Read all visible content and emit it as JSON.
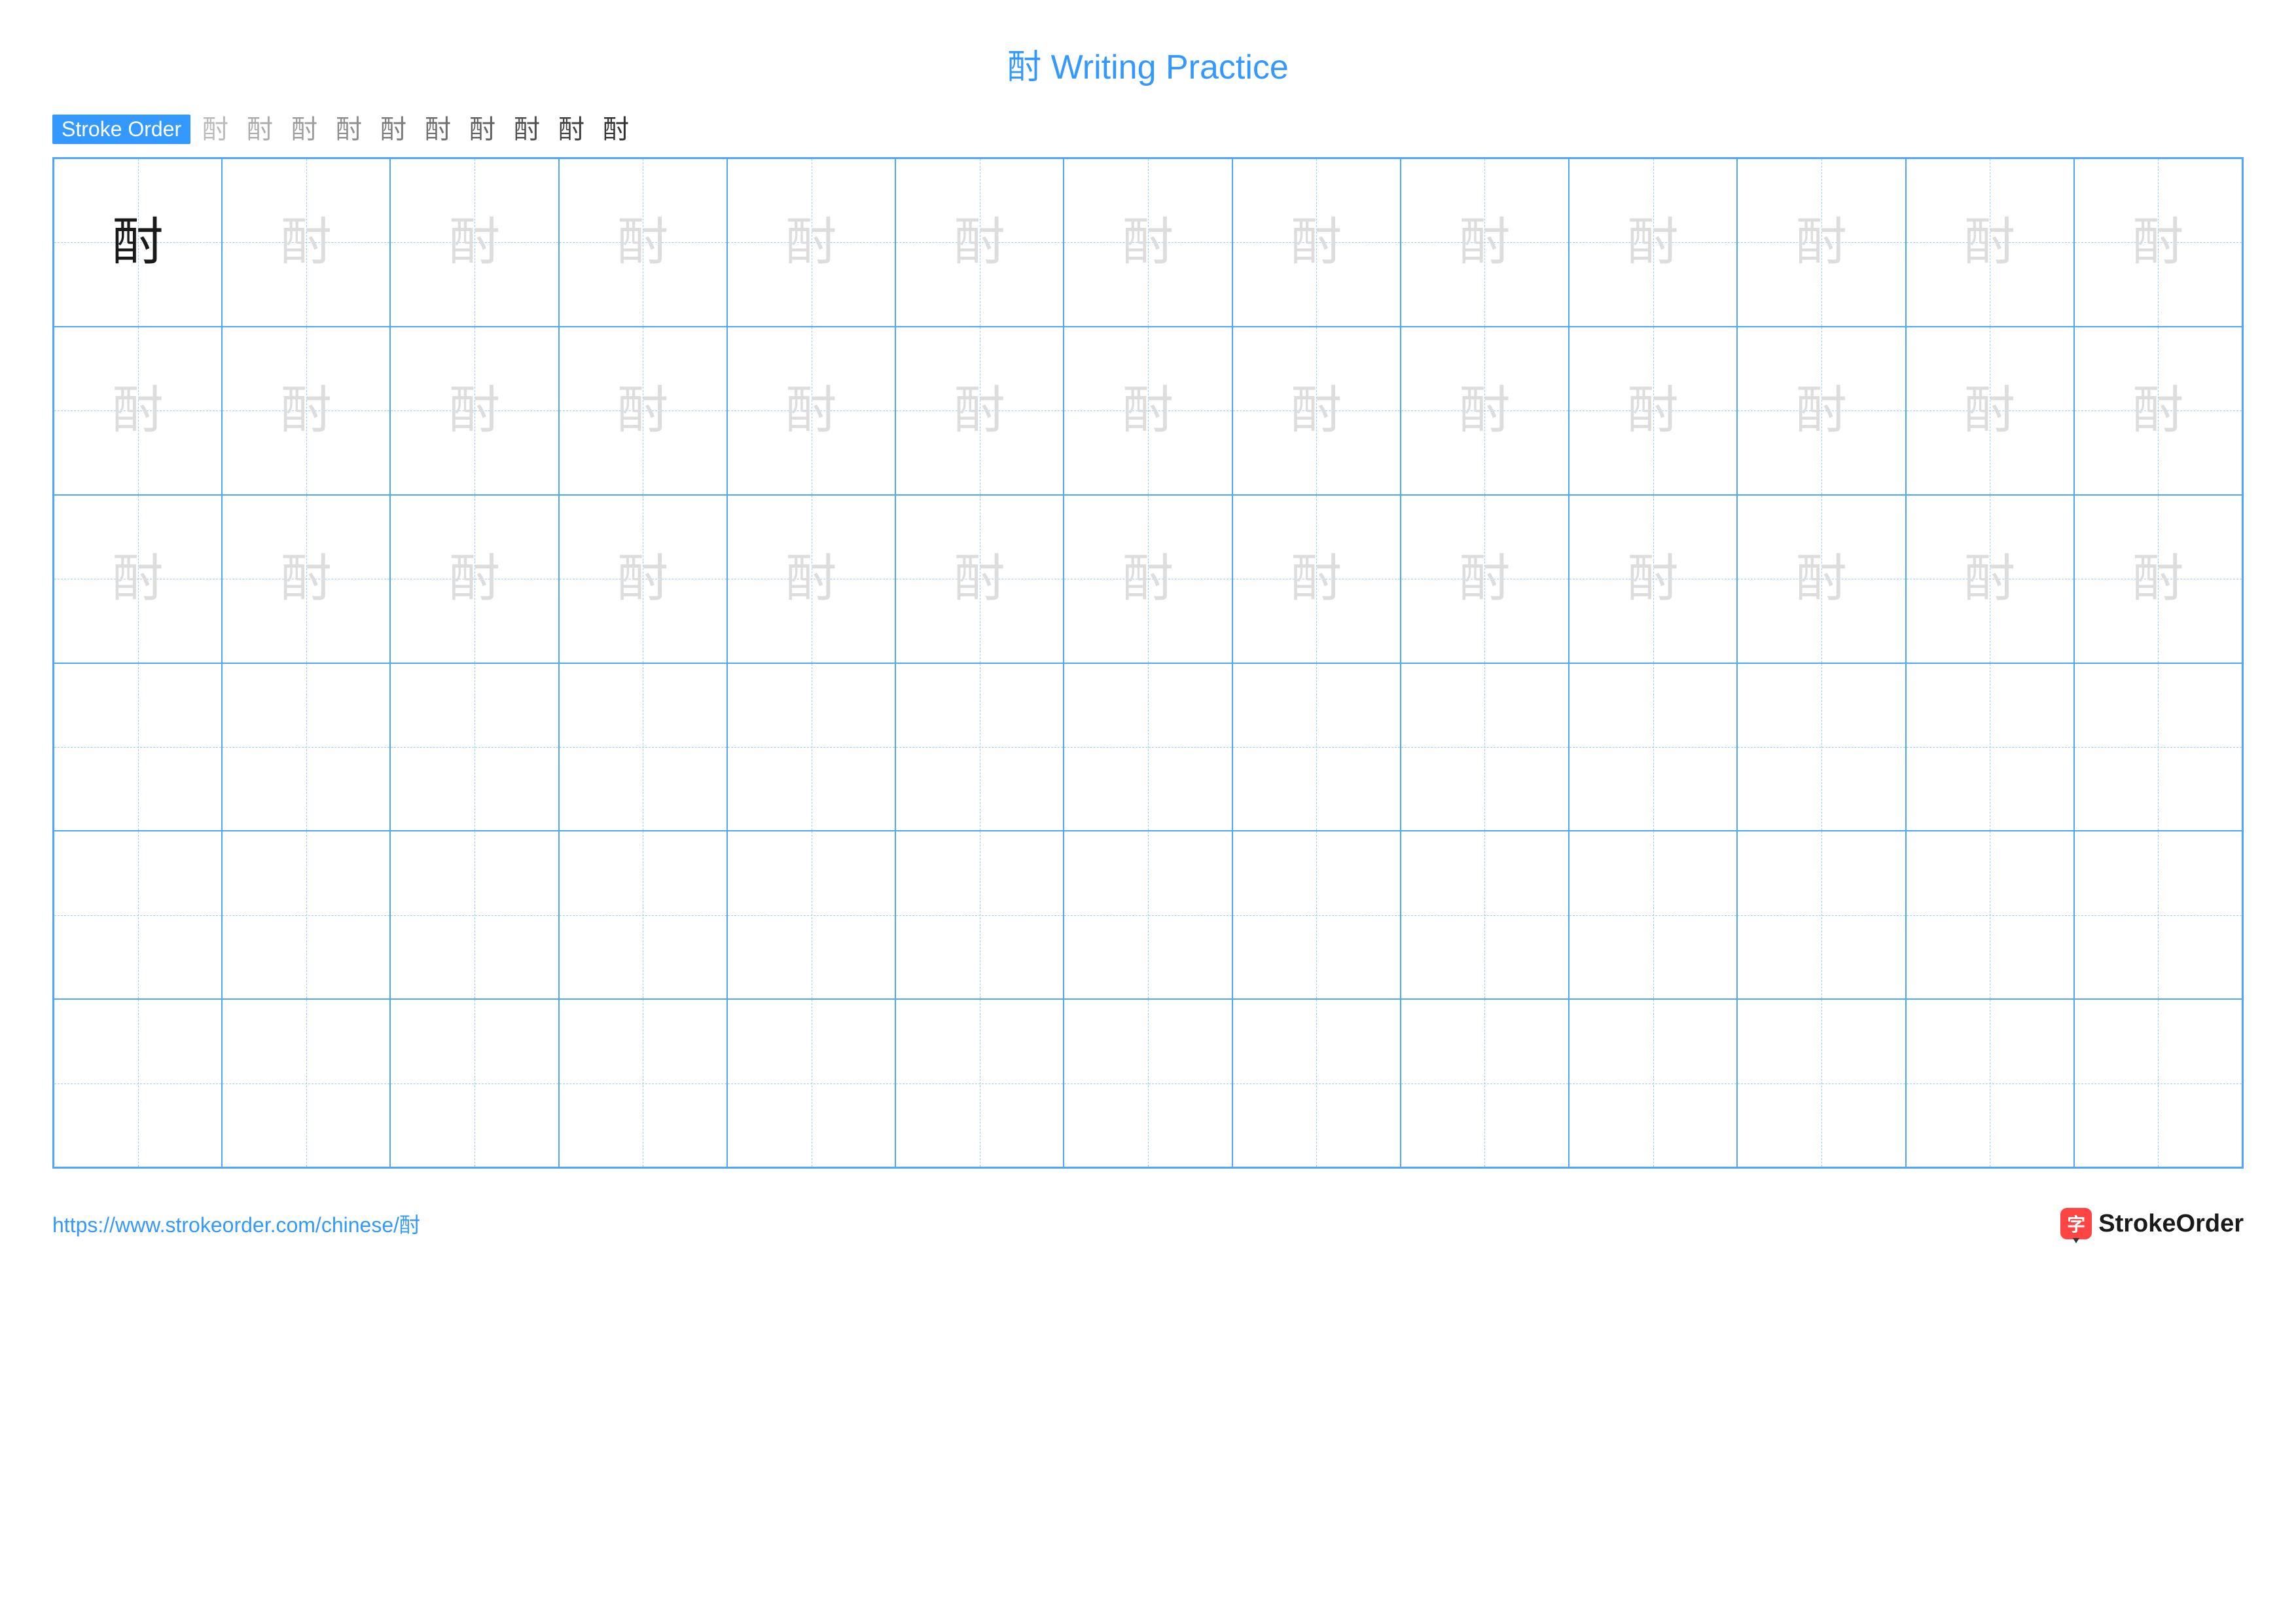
{
  "title": {
    "character": "酎",
    "text": "Writing Practice",
    "color": "#3399ff",
    "fontsize": 52
  },
  "stroke_order": {
    "label": "Stroke Order",
    "badge_bg": "#3399ff",
    "badge_color": "#ffffff",
    "steps_count": 10,
    "step_color": "#333333",
    "highlight_color": "#ff3333",
    "final_character": "酎"
  },
  "grid": {
    "rows": 6,
    "cols": 13,
    "border_color": "#4da6ff",
    "guide_color": "#99ccff",
    "solid_char_color": "#1a1a1a",
    "trace_char_color": "#dddddd",
    "character": "酎",
    "solid_count": 1,
    "trace_rows": 3,
    "empty_rows": 3,
    "char_fontsize": 78
  },
  "footer": {
    "url": "https://www.strokeorder.com/chinese/酎",
    "url_color": "#3399ff",
    "logo_text": "StrokeOrder",
    "logo_icon_char": "字",
    "logo_icon_bg": "#ff4444",
    "logo_text_color": "#1a1a1a"
  }
}
